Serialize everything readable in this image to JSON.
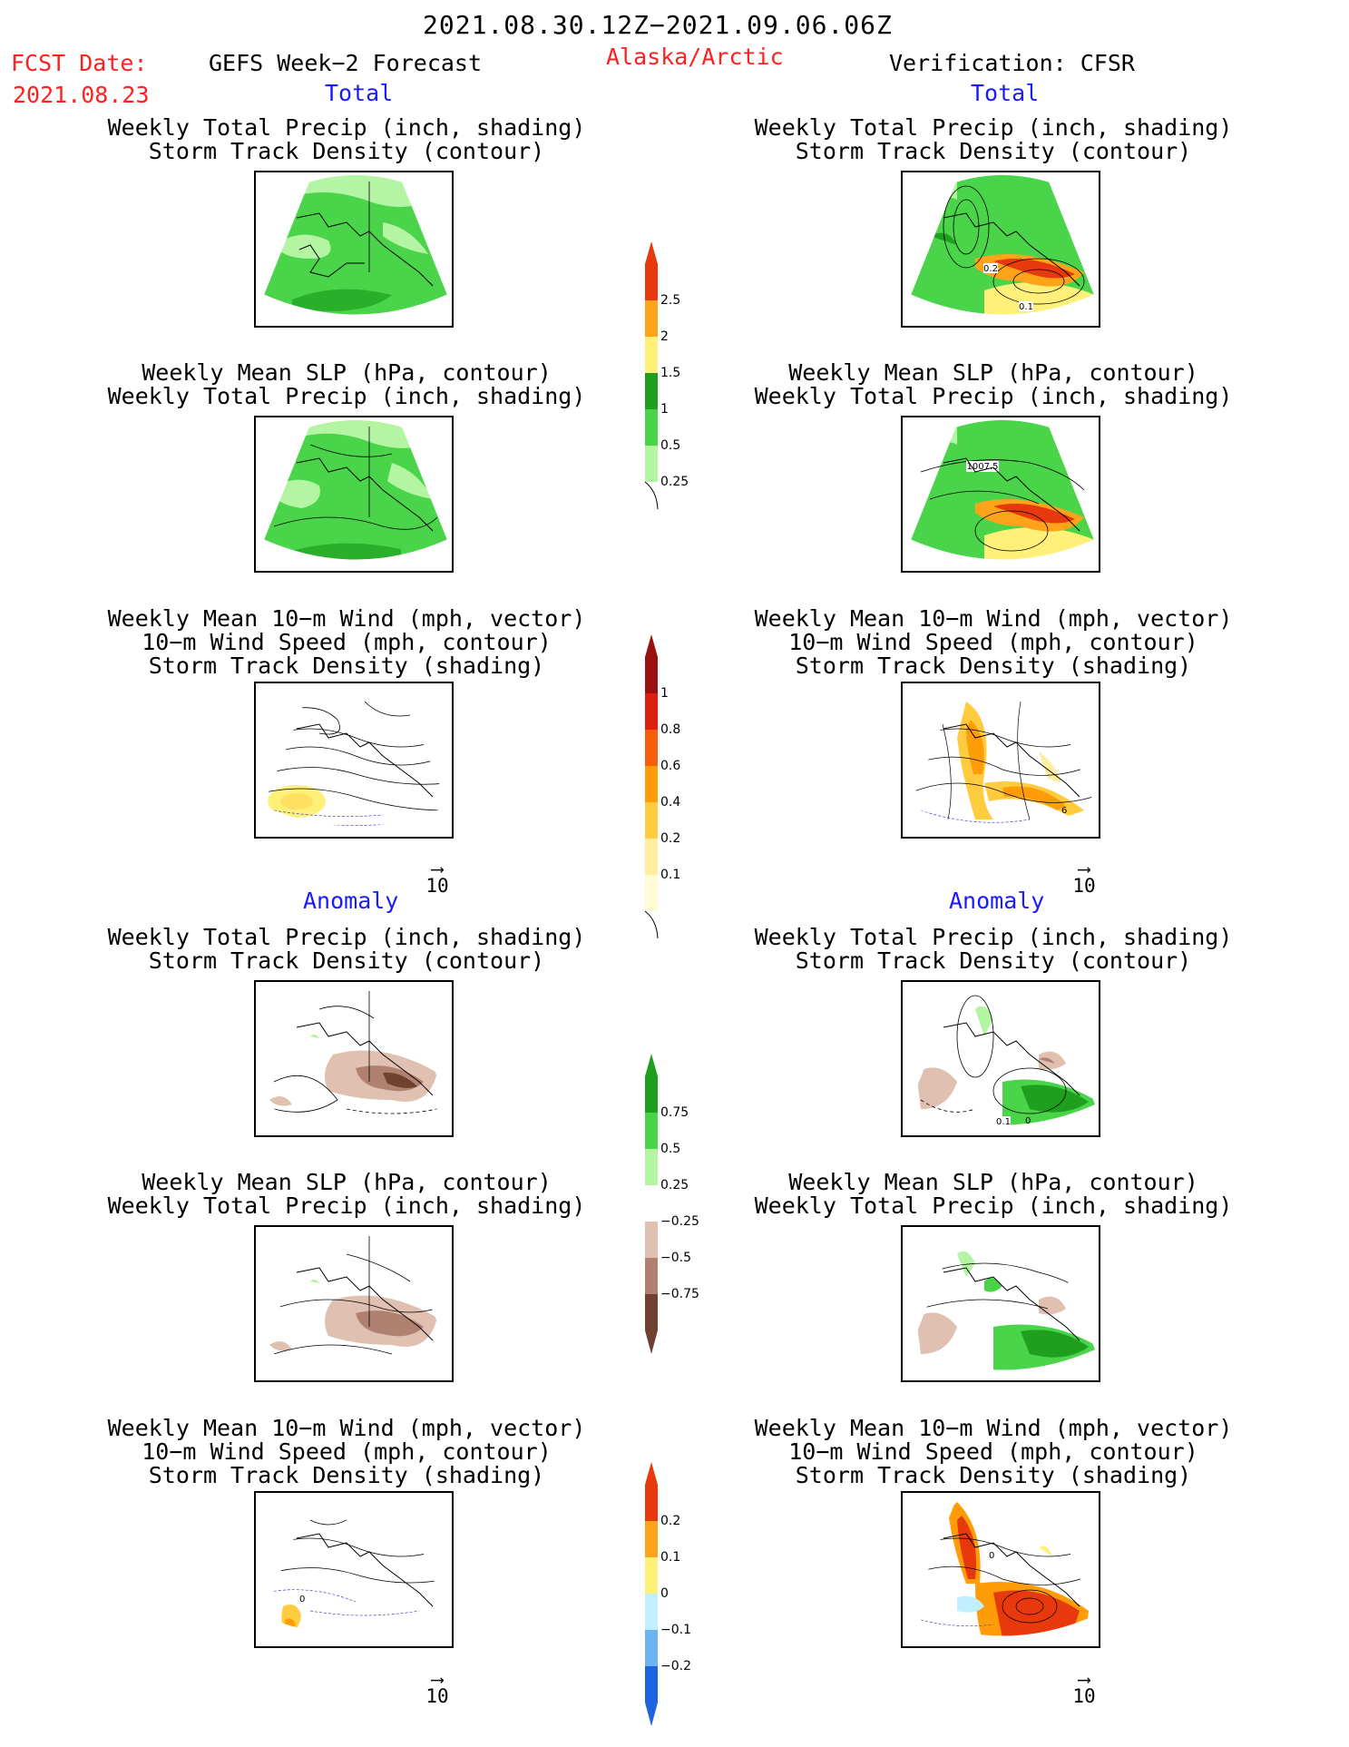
{
  "header": {
    "period": "2021.08.30.12Z−2021.09.06.06Z",
    "fcst_label": "FCST Date:",
    "fcst_date": "2021.08.23",
    "forecast_title": "GEFS Week−2 Forecast",
    "region": "Alaska/Arctic",
    "verification": "Verification: CFSR"
  },
  "sections": {
    "total": "Total",
    "anomaly": "Anomaly"
  },
  "captions": {
    "precip_track": [
      "Weekly Total Precip (inch, shading)",
      "Storm Track Density (contour)"
    ],
    "slp_precip": [
      "Weekly Mean SLP (hPa, contour)",
      "Weekly Total Precip (inch, shading)"
    ],
    "wind_track": [
      "Weekly Mean 10−m Wind (mph, vector)",
      "10−m Wind Speed (mph, contour)",
      "Storm Track Density (shading)"
    ]
  },
  "vector_ref": "10",
  "panel_labels": {
    "tot_obs_precip_a": "0.2",
    "tot_obs_precip_b": "0.1",
    "tot_obs_slp": "1007.5",
    "tot_obs_wind": "6",
    "anom_obs_precip_a": "0.1",
    "anom_obs_precip_b": "0",
    "anom_fcst_wind": "0",
    "anom_obs_wind": "0"
  },
  "colorbars": {
    "precip_total": {
      "labels": [
        "2.5",
        "2",
        "1.5",
        "1",
        "0.5",
        "0.25"
      ],
      "colors": [
        "#e8380d",
        "#ffa31a",
        "#fff07a",
        "#1ea01e",
        "#49d449",
        "#b4f5a4"
      ]
    },
    "track_total": {
      "labels": [
        "1",
        "0.8",
        "0.6",
        "0.4",
        "0.2",
        "0.1"
      ],
      "colors": [
        "#9b1010",
        "#e01e10",
        "#f55d0a",
        "#ff9c08",
        "#ffcc40",
        "#ffeea0",
        "#fffbd4"
      ]
    },
    "precip_anom": {
      "labels": [
        "0.75",
        "0.5",
        "0.25",
        "−0.25",
        "−0.5",
        "−0.75"
      ],
      "colors": [
        "#1ea01e",
        "#49d449",
        "#b4f5a4",
        "#ffffff",
        "#e0c0b0",
        "#b08070",
        "#704030"
      ]
    },
    "track_anom": {
      "labels": [
        "0.2",
        "0.1",
        "0",
        "−0.1",
        "−0.2"
      ],
      "colors": [
        "#e8380d",
        "#ffa31a",
        "#fff07a",
        "#c0f0ff",
        "#6cb4f0",
        "#1c64e0"
      ]
    }
  }
}
